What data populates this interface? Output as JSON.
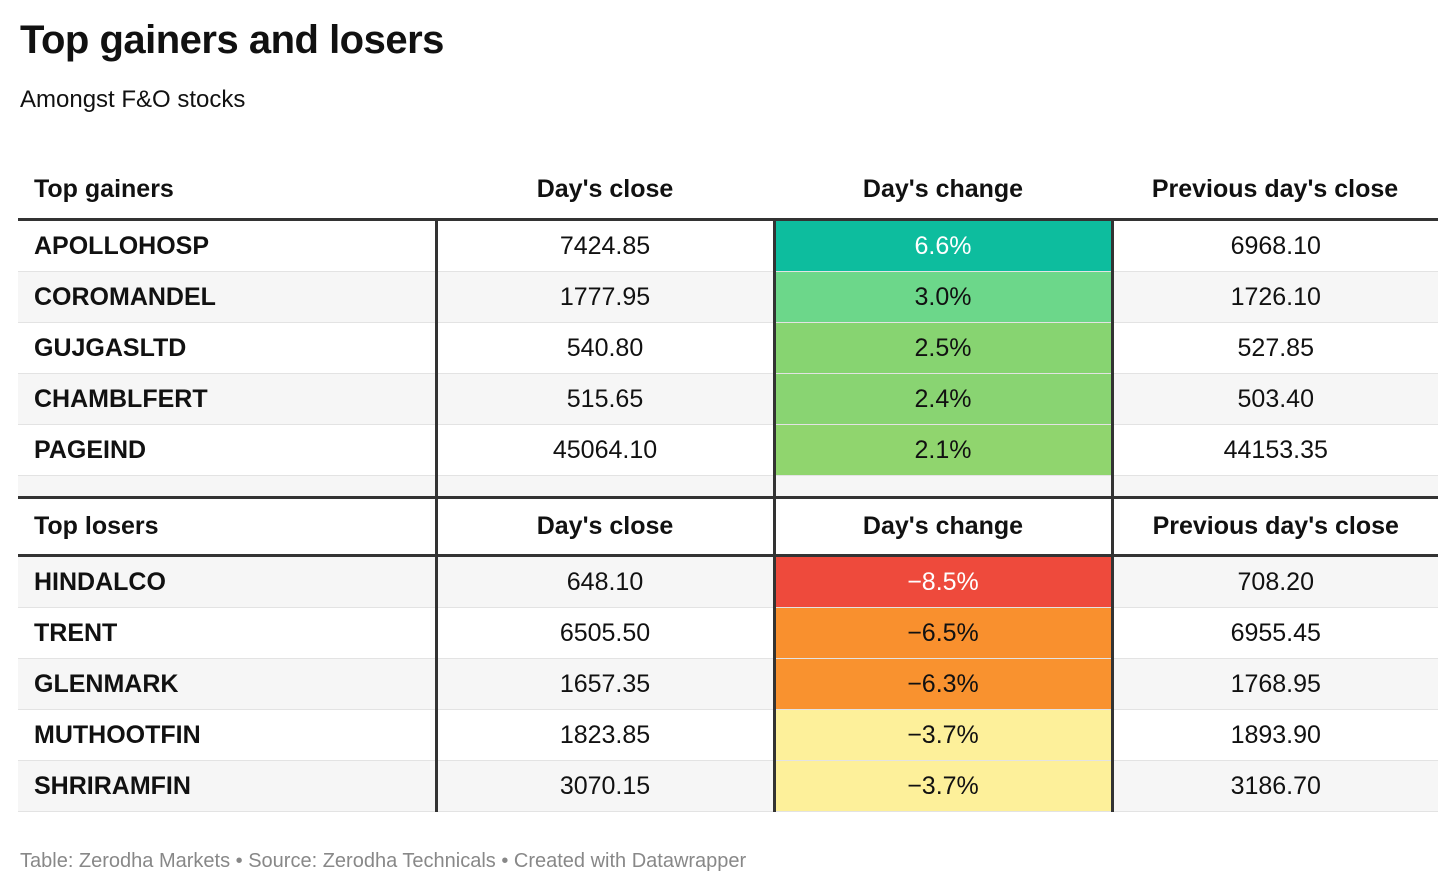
{
  "title": "Top gainers and losers",
  "subtitle": "Amongst F&O stocks",
  "footer": "Table: Zerodha Markets • Source: Zerodha Technicals • Created with Datawrapper",
  "chart_data": {
    "type": "table",
    "title": "Top gainers and losers",
    "subtitle": "Amongst F&O stocks",
    "gainers": {
      "headers": [
        "Top gainers",
        "Day's close",
        "Day's change",
        "Previous day's close"
      ],
      "rows": [
        {
          "name": "APOLLOHOSP",
          "close": "7424.85",
          "change": "6.6%",
          "prev": "6968.10",
          "color": "#0dbd9e",
          "text_color": "#ffffff"
        },
        {
          "name": "COROMANDEL",
          "close": "1777.95",
          "change": "3.0%",
          "prev": "1726.10",
          "color": "#6cd78a",
          "text_color": "#111111"
        },
        {
          "name": "GUJGASLTD",
          "close": "540.80",
          "change": "2.5%",
          "prev": "527.85",
          "color": "#87d471",
          "text_color": "#111111"
        },
        {
          "name": "CHAMBLFERT",
          "close": "515.65",
          "change": "2.4%",
          "prev": "503.40",
          "color": "#89d472",
          "text_color": "#111111"
        },
        {
          "name": "PAGEIND",
          "close": "45064.10",
          "change": "2.1%",
          "prev": "44153.35",
          "color": "#90d56e",
          "text_color": "#111111"
        }
      ]
    },
    "losers": {
      "headers": [
        "Top losers",
        "Day's close",
        "Day's change",
        "Previous day's close"
      ],
      "rows": [
        {
          "name": "HINDALCO",
          "close": "648.10",
          "change": "−8.5%",
          "prev": "708.20",
          "color": "#ee4a3c",
          "text_color": "#ffffff"
        },
        {
          "name": "TRENT",
          "close": "6505.50",
          "change": "−6.5%",
          "prev": "6955.45",
          "color": "#f9902e",
          "text_color": "#111111"
        },
        {
          "name": "GLENMARK",
          "close": "1657.35",
          "change": "−6.3%",
          "prev": "1768.95",
          "color": "#f9922f",
          "text_color": "#111111"
        },
        {
          "name": "MUTHOOTFIN",
          "close": "1823.85",
          "change": "−3.7%",
          "prev": "1893.90",
          "color": "#fdf09a",
          "text_color": "#111111"
        },
        {
          "name": "SHRIRAMFIN",
          "close": "3070.15",
          "change": "−3.7%",
          "prev": "3186.70",
          "color": "#fdf09a",
          "text_color": "#111111"
        }
      ]
    }
  }
}
